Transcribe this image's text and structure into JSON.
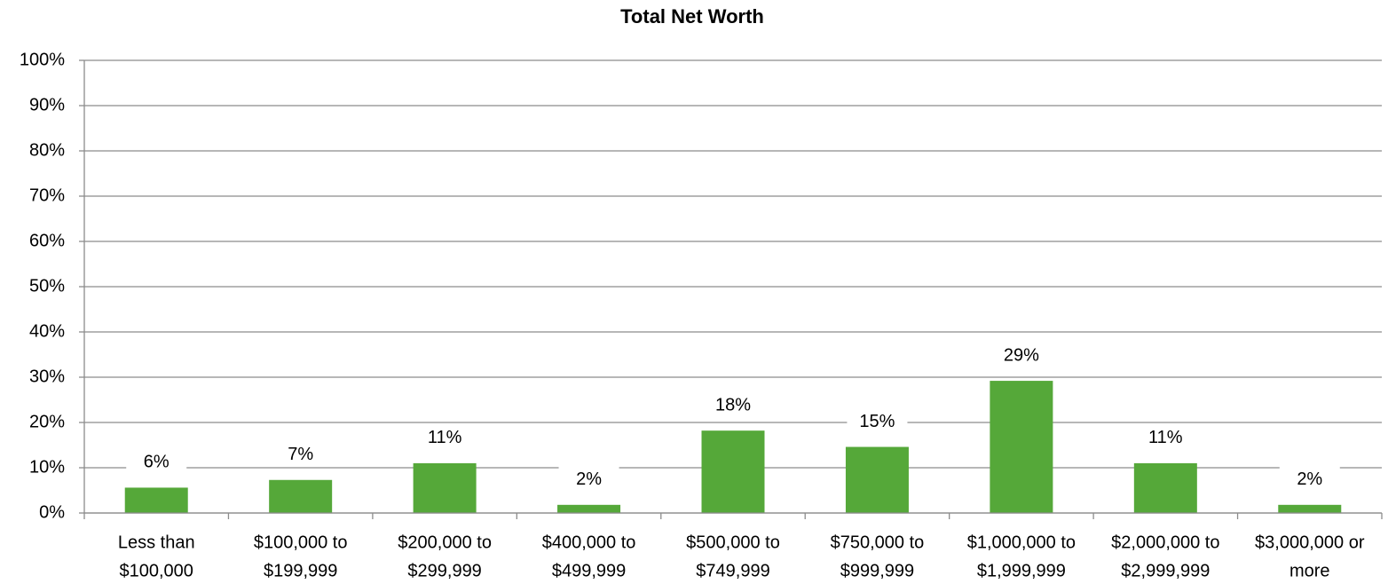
{
  "chart_data": {
    "type": "bar",
    "title": "Total Net Worth",
    "categories": [
      [
        "Less than",
        "$100,000"
      ],
      [
        "$100,000 to",
        "$199,999"
      ],
      [
        "$200,000 to",
        "$299,999"
      ],
      [
        "$400,000 to",
        "$499,999"
      ],
      [
        "$500,000 to",
        "$749,999"
      ],
      [
        "$750,000 to",
        "$999,999"
      ],
      [
        "$1,000,000 to",
        "$1,999,999"
      ],
      [
        "$2,000,000 to",
        "$2,999,999"
      ],
      [
        "$3,000,000 or",
        "more"
      ]
    ],
    "values": [
      5.6,
      7.3,
      11.0,
      1.8,
      18.2,
      14.6,
      29.2,
      11.0,
      1.8
    ],
    "value_labels": [
      "6%",
      "7%",
      "11%",
      "2%",
      "18%",
      "15%",
      "29%",
      "11%",
      "2%"
    ],
    "color": "#55a839",
    "ylim": [
      0,
      100
    ],
    "yticks": [
      {
        "value": 0,
        "label": "0%"
      },
      {
        "value": 10,
        "label": "10%"
      },
      {
        "value": 20,
        "label": "20%"
      },
      {
        "value": 30,
        "label": "30%"
      },
      {
        "value": 40,
        "label": "40%"
      },
      {
        "value": 50,
        "label": "50%"
      },
      {
        "value": 60,
        "label": "60%"
      },
      {
        "value": 70,
        "label": "70%"
      },
      {
        "value": 80,
        "label": "80%"
      },
      {
        "value": 90,
        "label": "90%"
      },
      {
        "value": 100,
        "label": "100%"
      }
    ],
    "grid": true
  }
}
